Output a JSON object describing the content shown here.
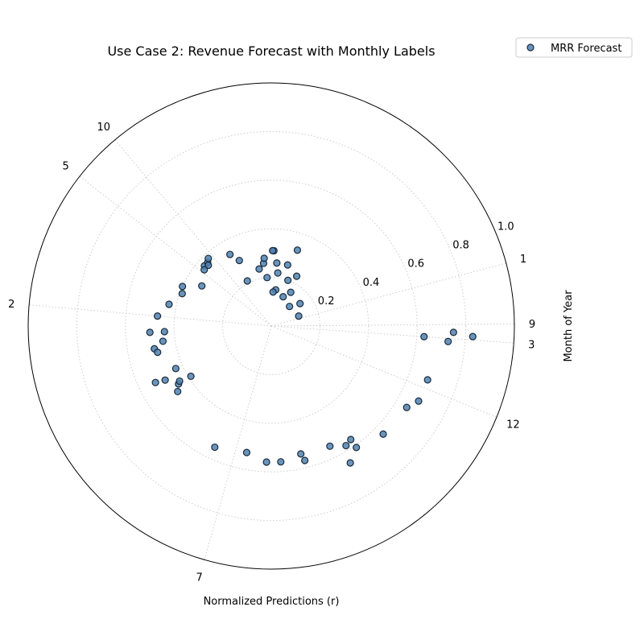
{
  "chart_data": {
    "type": "scatter",
    "projection": "polar",
    "title": "Use Case 2: Revenue Forecast with Monthly Labels",
    "xlabel": "Normalized Predictions (r)",
    "ylabel": "Month of Year",
    "rlim": [
      0,
      1.0
    ],
    "r_ticks": [
      0.2,
      0.4,
      0.6,
      0.8,
      1.0
    ],
    "theta_unit": "degrees",
    "theta_zero": "east",
    "theta_direction": "counterclockwise",
    "theta_ticks": [
      {
        "angle": 15,
        "label": "1"
      },
      {
        "angle": 356,
        "label": "3"
      },
      {
        "angle": 0.5,
        "label": "9"
      },
      {
        "angle": 338,
        "label": "12"
      },
      {
        "angle": 142,
        "label": "5"
      },
      {
        "angle": 130,
        "label": "10"
      },
      {
        "angle": 175,
        "label": "2"
      },
      {
        "angle": 254,
        "label": "7"
      }
    ],
    "grid": true,
    "legend": {
      "position": "top-right",
      "entries": [
        "MRR Forecast"
      ]
    },
    "series": [
      {
        "name": "MRR Forecast",
        "color": "#4f81b0",
        "points": [
          {
            "theta": 20,
            "r": 0.12
          },
          {
            "theta": 38,
            "r": 0.15
          },
          {
            "theta": 63,
            "r": 0.23
          },
          {
            "theta": 60,
            "r": 0.16
          },
          {
            "theta": 68,
            "r": 0.13
          },
          {
            "theta": 75,
            "r": 0.26
          },
          {
            "theta": 83,
            "r": 0.15
          },
          {
            "theta": 85,
            "r": 0.26
          },
          {
            "theta": 83,
            "r": 0.22
          },
          {
            "theta": 70,
            "r": 0.2
          },
          {
            "theta": 95,
            "r": 0.2
          },
          {
            "theta": 118,
            "r": 0.21
          },
          {
            "theta": 88,
            "r": 0.31
          },
          {
            "theta": 89,
            "r": 0.31
          },
          {
            "theta": 97,
            "r": 0.26
          },
          {
            "theta": 102,
            "r": 0.24
          },
          {
            "theta": 96,
            "r": 0.28
          },
          {
            "theta": 116,
            "r": 0.3
          },
          {
            "theta": 87,
            "r": 0.14
          },
          {
            "theta": 47,
            "r": 0.11
          },
          {
            "theta": 71,
            "r": 0.33
          },
          {
            "theta": 120,
            "r": 0.34
          },
          {
            "theta": 138,
            "r": 0.37
          },
          {
            "theta": 135,
            "r": 0.37
          },
          {
            "theta": 133,
            "r": 0.38
          },
          {
            "theta": 136,
            "r": 0.36
          },
          {
            "theta": 140,
            "r": 0.36
          },
          {
            "theta": 150,
            "r": 0.33
          },
          {
            "theta": 160,
            "r": 0.39
          },
          {
            "theta": 156,
            "r": 0.4
          },
          {
            "theta": 168,
            "r": 0.43
          },
          {
            "theta": 175,
            "r": 0.47
          },
          {
            "theta": 183,
            "r": 0.5
          },
          {
            "theta": 191,
            "r": 0.49
          },
          {
            "theta": 188,
            "r": 0.45
          },
          {
            "theta": 193,
            "r": 0.48
          },
          {
            "theta": 183,
            "r": 0.44
          },
          {
            "theta": 204,
            "r": 0.43
          },
          {
            "theta": 212,
            "r": 0.45
          },
          {
            "theta": 211,
            "r": 0.44
          },
          {
            "theta": 215,
            "r": 0.47
          },
          {
            "theta": 207,
            "r": 0.49
          },
          {
            "theta": 212,
            "r": 0.39
          },
          {
            "theta": 206,
            "r": 0.53
          },
          {
            "theta": 245,
            "r": 0.55
          },
          {
            "theta": 259,
            "r": 0.53
          },
          {
            "theta": 268,
            "r": 0.56
          },
          {
            "theta": 274,
            "r": 0.56
          },
          {
            "theta": 283,
            "r": 0.54
          },
          {
            "theta": 284,
            "r": 0.57
          },
          {
            "theta": 302,
            "r": 0.58
          },
          {
            "theta": 305,
            "r": 0.57
          },
          {
            "theta": 296,
            "r": 0.55
          },
          {
            "theta": 305,
            "r": 0.61
          },
          {
            "theta": 300,
            "r": 0.65
          },
          {
            "theta": 316,
            "r": 0.64
          },
          {
            "theta": 329,
            "r": 0.65
          },
          {
            "theta": 333,
            "r": 0.68
          },
          {
            "theta": 341,
            "r": 0.68
          },
          {
            "theta": 356,
            "r": 0.63
          },
          {
            "theta": 355,
            "r": 0.73
          },
          {
            "theta": 357,
            "r": 0.83
          },
          {
            "theta": 358,
            "r": 0.75
          }
        ]
      }
    ]
  }
}
